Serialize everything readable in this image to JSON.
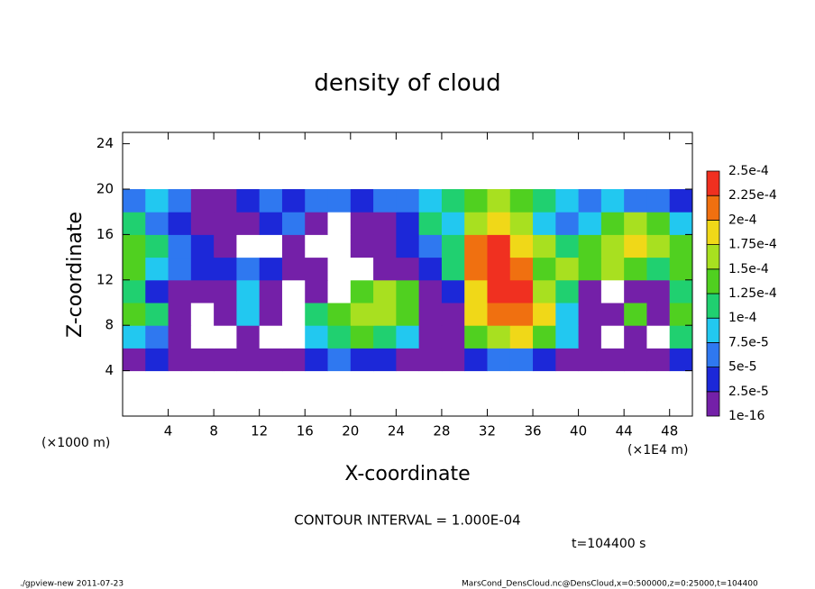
{
  "chart_data": {
    "type": "heatmap",
    "title": "density of cloud",
    "x_label": "X-coordinate",
    "y_label": "Z-coordinate",
    "x_unit_left": "(×1000 m)",
    "x_unit_right": "(×1E4 m)",
    "note": "CONTOUR INTERVAL = 1.000E-04",
    "time": "t=104400 s",
    "footer_left": "./gpview-new   2011-07-23",
    "footer_right": "MarsCond_DensCloud.nc@DensCloud,x=0:500000,z=0:25000,t=104400",
    "xlim": [
      0,
      50
    ],
    "ylim": [
      0,
      25
    ],
    "xticks": [
      4,
      8,
      12,
      16,
      20,
      24,
      28,
      32,
      36,
      40,
      44,
      48
    ],
    "yticks": [
      4,
      8,
      12,
      16,
      20,
      24
    ],
    "x_edges": [
      0,
      2,
      4,
      6,
      8,
      10,
      12,
      14,
      16,
      18,
      20,
      22,
      24,
      26,
      28,
      30,
      32,
      34,
      36,
      38,
      40,
      42,
      44,
      46,
      48,
      50
    ],
    "y_edges": [
      4,
      6,
      8,
      10,
      12,
      14,
      16,
      18,
      20
    ],
    "z": [
      [
        1e-16,
        2.5e-05,
        1e-16,
        1e-16,
        1e-16,
        1e-16,
        1e-16,
        1e-16,
        2.5e-05,
        5e-05,
        2.5e-05,
        2.5e-05,
        1e-16,
        1e-16,
        1e-16,
        2.5e-05,
        5e-05,
        5e-05,
        2.5e-05,
        1e-16,
        1e-16,
        1e-16,
        1e-16,
        1e-16,
        2.5e-05
      ],
      [
        7.5e-05,
        5e-05,
        1e-16,
        0,
        0,
        1e-16,
        0,
        0,
        7.5e-05,
        0.0001,
        0.000125,
        0.0001,
        7.5e-05,
        1e-16,
        1e-16,
        0.000125,
        0.00015,
        0.000175,
        0.000125,
        7.5e-05,
        1e-16,
        0,
        1e-16,
        0,
        0.0001
      ],
      [
        0.000125,
        0.0001,
        1e-16,
        0,
        1e-16,
        7.5e-05,
        1e-16,
        0,
        0.0001,
        0.000125,
        0.00015,
        0.00015,
        0.000125,
        1e-16,
        1e-16,
        0.000175,
        0.0002,
        0.0002,
        0.000175,
        7.5e-05,
        1e-16,
        1e-16,
        0.000125,
        1e-16,
        0.000125
      ],
      [
        0.0001,
        2.5e-05,
        1e-16,
        1e-16,
        1e-16,
        7.5e-05,
        1e-16,
        0,
        1e-16,
        0,
        0.000125,
        0.00015,
        0.000125,
        1e-16,
        2.5e-05,
        0.000175,
        0.000225,
        0.000225,
        0.00015,
        0.0001,
        1e-16,
        0,
        1e-16,
        1e-16,
        0.0001
      ],
      [
        0.000125,
        7.5e-05,
        5e-05,
        2.5e-05,
        2.5e-05,
        5e-05,
        2.5e-05,
        1e-16,
        1e-16,
        0,
        0,
        1e-16,
        1e-16,
        2.5e-05,
        0.0001,
        0.0002,
        0.000225,
        0.0002,
        0.000125,
        0.00015,
        0.000125,
        0.00015,
        0.000125,
        0.0001,
        0.000125
      ],
      [
        0.000125,
        0.0001,
        5e-05,
        2.5e-05,
        1e-16,
        0,
        0,
        1e-16,
        0,
        0,
        1e-16,
        1e-16,
        2.5e-05,
        5e-05,
        0.0001,
        0.0002,
        0.000225,
        0.000175,
        0.00015,
        0.0001,
        0.000125,
        0.00015,
        0.000175,
        0.00015,
        0.000125
      ],
      [
        0.0001,
        5e-05,
        2.5e-05,
        1e-16,
        1e-16,
        1e-16,
        2.5e-05,
        5e-05,
        1e-16,
        0,
        1e-16,
        1e-16,
        2.5e-05,
        0.0001,
        7.5e-05,
        0.00015,
        0.000175,
        0.00015,
        7.5e-05,
        5e-05,
        7.5e-05,
        0.000125,
        0.00015,
        0.000125,
        7.5e-05
      ],
      [
        5e-05,
        7.5e-05,
        5e-05,
        1e-16,
        1e-16,
        2.5e-05,
        5e-05,
        2.5e-05,
        5e-05,
        5e-05,
        2.5e-05,
        5e-05,
        5e-05,
        7.5e-05,
        0.0001,
        0.000125,
        0.00015,
        0.000125,
        0.0001,
        7.5e-05,
        5e-05,
        7.5e-05,
        5e-05,
        5e-05,
        2.5e-05
      ]
    ],
    "colorbar": {
      "levels": [
        {
          "value": 1e-16,
          "label": "1e-16"
        },
        {
          "value": 2.5e-05,
          "label": "2.5e-5"
        },
        {
          "value": 5e-05,
          "label": "5e-5"
        },
        {
          "value": 7.5e-05,
          "label": "7.5e-5"
        },
        {
          "value": 0.0001,
          "label": "1e-4"
        },
        {
          "value": 0.000125,
          "label": "1.25e-4"
        },
        {
          "value": 0.00015,
          "label": "1.5e-4"
        },
        {
          "value": 0.000175,
          "label": "1.75e-4"
        },
        {
          "value": 0.0002,
          "label": "2e-4"
        },
        {
          "value": 0.000225,
          "label": "2.25e-4"
        },
        {
          "value": 0.00025,
          "label": "2.5e-4"
        }
      ],
      "colors": [
        "#7420a8",
        "#1c28d8",
        "#2f78f0",
        "#22c8f0",
        "#20d070",
        "#50d020",
        "#a8e020",
        "#f0d818",
        "#f07010",
        "#f03020"
      ]
    }
  }
}
